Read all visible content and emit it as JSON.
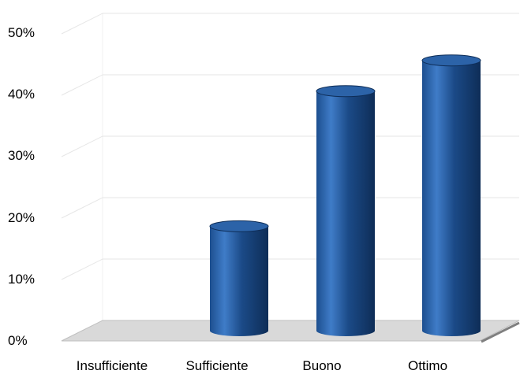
{
  "chart_data": {
    "type": "bar",
    "style": "3d-cylinder",
    "categories": [
      "Insufficiente",
      "Sufficiente",
      "Buono",
      "Ottimo"
    ],
    "values": [
      0,
      17,
      39,
      44
    ],
    "value_unit": "%",
    "ylim": [
      0,
      50
    ],
    "yticks": [
      "0%",
      "10%",
      "20%",
      "30%",
      "40%",
      "50%"
    ],
    "grid": true,
    "legend": "none",
    "colors": {
      "bar_dark": "#0e2d57",
      "bar_mid": "#1d4f8f",
      "bar_light": "#3f7cc8",
      "bar_top": "#2c63a8",
      "floor": "#d9d9d9",
      "floor_edge": "#7f7f7f",
      "grid": "#e6e6e6"
    }
  }
}
